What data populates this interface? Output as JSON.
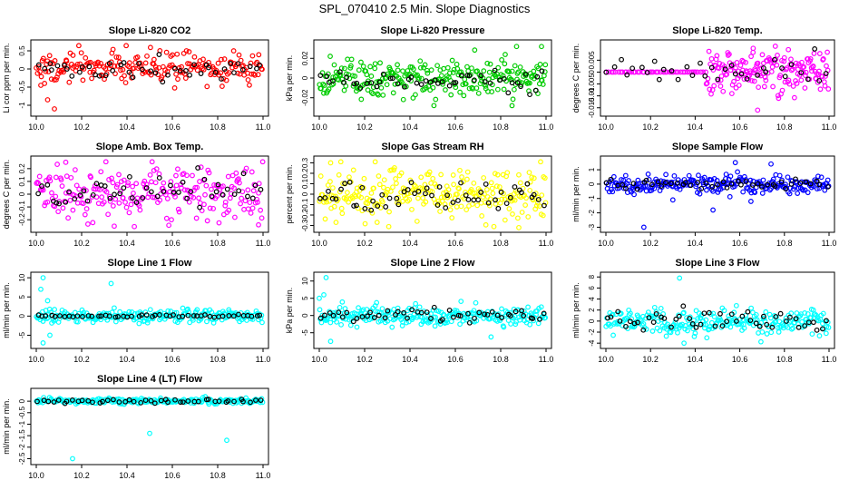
{
  "page": {
    "title": "SPL_070410  2.5 Min. Slope Diagnostics"
  },
  "colors": {
    "red": "#ff0000",
    "green": "#00cc00",
    "magenta": "#ff00ff",
    "yellow": "#ffff00",
    "blue": "#0000ff",
    "cyan": "#00ffff",
    "black": "#000000"
  },
  "chart_data": [
    {
      "type": "scatter",
      "title": "Slope Li-820 CO2",
      "xlabel": "",
      "ylabel": "Li cor ppm per min.",
      "xlim": [
        10.0,
        11.0
      ],
      "ylim": [
        -1.2,
        0.7
      ],
      "x_ticks": [
        10.0,
        10.2,
        10.4,
        10.6,
        10.8,
        11.0
      ],
      "y_ticks": [
        -1.0,
        -0.5,
        0.0,
        0.5
      ],
      "series": [
        {
          "name": "slopes",
          "color": "red",
          "center": 0.05,
          "spread": 0.22,
          "count": 210
        },
        {
          "name": "hourly",
          "color": "black",
          "center": 0.0,
          "spread": 0.15,
          "count": 45
        }
      ],
      "outliers": [
        {
          "x": 10.08,
          "y": -1.1
        },
        {
          "x": 10.05,
          "y": -0.85
        },
        {
          "x": 10.02,
          "y": -0.45
        }
      ]
    },
    {
      "type": "scatter",
      "title": "Slope Li-820 Pressure",
      "xlabel": "",
      "ylabel": "kPa per min.",
      "xlim": [
        10.0,
        11.0
      ],
      "ylim": [
        -0.035,
        0.035
      ],
      "x_ticks": [
        10.0,
        10.2,
        10.4,
        10.6,
        10.8,
        11.0
      ],
      "y_ticks": [
        -0.02,
        0.0,
        0.02
      ],
      "series": [
        {
          "name": "slopes",
          "color": "green",
          "center": 0.0,
          "spread": 0.009,
          "count": 260
        },
        {
          "name": "hourly",
          "color": "black",
          "center": -0.003,
          "spread": 0.006,
          "count": 50
        }
      ],
      "outliers": [
        {
          "x": 10.87,
          "y": 0.032
        },
        {
          "x": 10.98,
          "y": 0.032
        },
        {
          "x": 10.85,
          "y": -0.028
        }
      ]
    },
    {
      "type": "scatter",
      "title": "Slope Li-820 Temp.",
      "xlabel": "",
      "ylabel": "degrees C per min.",
      "xlim": [
        10.0,
        11.0
      ],
      "ylim": [
        -0.017,
        0.012
      ],
      "x_ticks": [
        10.0,
        10.2,
        10.4,
        10.6,
        10.8,
        11.0
      ],
      "y_ticks": [
        -0.015,
        -0.01,
        -0.005,
        0.0,
        0.005
      ],
      "series": [
        {
          "name": "slopes",
          "color": "magenta",
          "center": 0.0,
          "spread": 0.0045,
          "count": 170,
          "x_start": 10.45
        },
        {
          "name": "flat",
          "color": "magenta",
          "center": 0.0,
          "spread": 0.0,
          "count": 45,
          "x_start": 10.0,
          "x_end": 10.45
        },
        {
          "name": "hourly",
          "color": "black",
          "center": 0.0,
          "spread": 0.003,
          "count": 35
        }
      ],
      "outliers": [
        {
          "x": 10.68,
          "y": -0.016
        },
        {
          "x": 10.66,
          "y": 0.01
        }
      ]
    },
    {
      "type": "scatter",
      "title": "Slope Amb. Box Temp.",
      "xlabel": "",
      "ylabel": "degrees C per min.",
      "xlim": [
        10.0,
        11.0
      ],
      "ylim": [
        -0.27,
        0.27
      ],
      "x_ticks": [
        10.0,
        10.2,
        10.4,
        10.6,
        10.8,
        11.0
      ],
      "y_ticks": [
        -0.2,
        -0.1,
        0.0,
        0.1,
        0.2
      ],
      "series": [
        {
          "name": "slopes",
          "color": "magenta",
          "center": 0.0,
          "spread": 0.1,
          "count": 230
        },
        {
          "name": "hourly",
          "color": "black",
          "center": 0.0,
          "spread": 0.06,
          "count": 50
        }
      ],
      "outliers": [
        {
          "x": 10.13,
          "y": 0.25
        },
        {
          "x": 10.98,
          "y": -0.24
        }
      ]
    },
    {
      "type": "scatter",
      "title": "Slope Gas Stream RH",
      "xlabel": "",
      "ylabel": "percent per min.",
      "xlim": [
        10.0,
        11.0
      ],
      "ylim": [
        -0.33,
        0.33
      ],
      "x_ticks": [
        10.0,
        10.2,
        10.4,
        10.6,
        10.8,
        11.0
      ],
      "y_ticks": [
        -0.3,
        -0.2,
        -0.1,
        0.0,
        0.1,
        0.2,
        0.3
      ],
      "series": [
        {
          "name": "slopes",
          "color": "yellow",
          "center": 0.0,
          "spread": 0.12,
          "count": 260
        },
        {
          "name": "hourly",
          "color": "black",
          "center": -0.02,
          "spread": 0.08,
          "count": 55
        }
      ],
      "outliers": [
        {
          "x": 10.05,
          "y": 0.3
        },
        {
          "x": 10.88,
          "y": -0.32
        }
      ]
    },
    {
      "type": "scatter",
      "title": "Slope Sample Flow",
      "xlabel": "",
      "ylabel": "ml/min per min.",
      "xlim": [
        10.0,
        11.0
      ],
      "ylim": [
        -3.1,
        1.7
      ],
      "x_ticks": [
        10.0,
        10.2,
        10.4,
        10.6,
        10.8,
        11.0
      ],
      "y_ticks": [
        -3,
        -2,
        -1,
        0,
        1
      ],
      "series": [
        {
          "name": "slopes",
          "color": "blue",
          "center": 0.0,
          "spread": 0.3,
          "count": 240
        },
        {
          "name": "hourly",
          "color": "black",
          "center": 0.0,
          "spread": 0.15,
          "count": 45
        }
      ],
      "outliers": [
        {
          "x": 10.17,
          "y": -3.0
        },
        {
          "x": 10.48,
          "y": -1.8
        },
        {
          "x": 10.58,
          "y": 1.5
        },
        {
          "x": 10.74,
          "y": 1.4
        },
        {
          "x": 10.65,
          "y": -1.2
        },
        {
          "x": 10.3,
          "y": -1.1
        }
      ]
    },
    {
      "type": "scatter",
      "title": "Slope Line 1 Flow",
      "xlabel": "",
      "ylabel": "ml/min per min.",
      "xlim": [
        10.0,
        11.0
      ],
      "ylim": [
        -7.5,
        10.5
      ],
      "x_ticks": [
        10.0,
        10.2,
        10.4,
        10.6,
        10.8,
        11.0
      ],
      "y_ticks": [
        -5,
        0,
        5,
        10
      ],
      "series": [
        {
          "name": "slopes",
          "color": "cyan",
          "center": 0.0,
          "spread": 0.9,
          "count": 240
        },
        {
          "name": "hourly",
          "color": "black",
          "center": 0.0,
          "spread": 0.2,
          "count": 50
        }
      ],
      "outliers": [
        {
          "x": 10.03,
          "y": 10.0
        },
        {
          "x": 10.33,
          "y": 8.5
        },
        {
          "x": 10.03,
          "y": -7.0
        },
        {
          "x": 10.06,
          "y": -5.0
        },
        {
          "x": 10.02,
          "y": 7.0
        },
        {
          "x": 10.05,
          "y": 4.0
        }
      ]
    },
    {
      "type": "scatter",
      "title": "Slope Line 2 Flow",
      "xlabel": "",
      "ylabel": "kPa per min.",
      "xlim": [
        10.0,
        11.0
      ],
      "ylim": [
        -8.5,
        11.5
      ],
      "x_ticks": [
        10.0,
        10.2,
        10.4,
        10.6,
        10.8,
        11.0
      ],
      "y_ticks": [
        -5,
        0,
        5,
        10
      ],
      "series": [
        {
          "name": "slopes",
          "color": "cyan",
          "center": 0.0,
          "spread": 1.4,
          "count": 250
        },
        {
          "name": "hourly",
          "color": "black",
          "center": 0.0,
          "spread": 1.0,
          "count": 50
        }
      ],
      "outliers": [
        {
          "x": 10.03,
          "y": 11.0
        },
        {
          "x": 10.05,
          "y": -7.5
        },
        {
          "x": 10.02,
          "y": 6.0
        },
        {
          "x": 10.0,
          "y": 5.0
        }
      ]
    },
    {
      "type": "scatter",
      "title": "Slope Line 3 Flow",
      "xlabel": "",
      "ylabel": "ml/min per min.",
      "xlim": [
        10.0,
        11.0
      ],
      "ylim": [
        -4.3,
        8.2
      ],
      "x_ticks": [
        10.0,
        10.2,
        10.4,
        10.6,
        10.8,
        11.0
      ],
      "y_ticks": [
        -4,
        -2,
        0,
        2,
        4,
        6,
        8
      ],
      "series": [
        {
          "name": "slopes",
          "color": "cyan",
          "center": 0.0,
          "spread": 1.1,
          "count": 250
        },
        {
          "name": "hourly",
          "color": "black",
          "center": 0.0,
          "spread": 0.9,
          "count": 50
        }
      ],
      "outliers": [
        {
          "x": 10.33,
          "y": 7.8
        },
        {
          "x": 10.35,
          "y": -4.0
        }
      ]
    },
    {
      "type": "scatter",
      "title": "Slope Line 4 (LT) Flow",
      "xlabel": "",
      "ylabel": "ml/min per min.",
      "xlim": [
        10.0,
        11.0
      ],
      "ylim": [
        -2.6,
        0.4
      ],
      "x_ticks": [
        10.0,
        10.2,
        10.4,
        10.6,
        10.8,
        11.0
      ],
      "y_ticks": [
        -2.5,
        -2.0,
        -1.5,
        -1.0,
        -0.5,
        0.0
      ],
      "series": [
        {
          "name": "slopes",
          "color": "cyan",
          "center": 0.0,
          "spread": 0.06,
          "count": 230
        },
        {
          "name": "hourly",
          "color": "black",
          "center": 0.0,
          "spread": 0.05,
          "count": 45
        }
      ],
      "outliers": [
        {
          "x": 10.16,
          "y": -2.5
        },
        {
          "x": 10.5,
          "y": -1.4
        },
        {
          "x": 10.84,
          "y": -1.7
        }
      ]
    }
  ]
}
